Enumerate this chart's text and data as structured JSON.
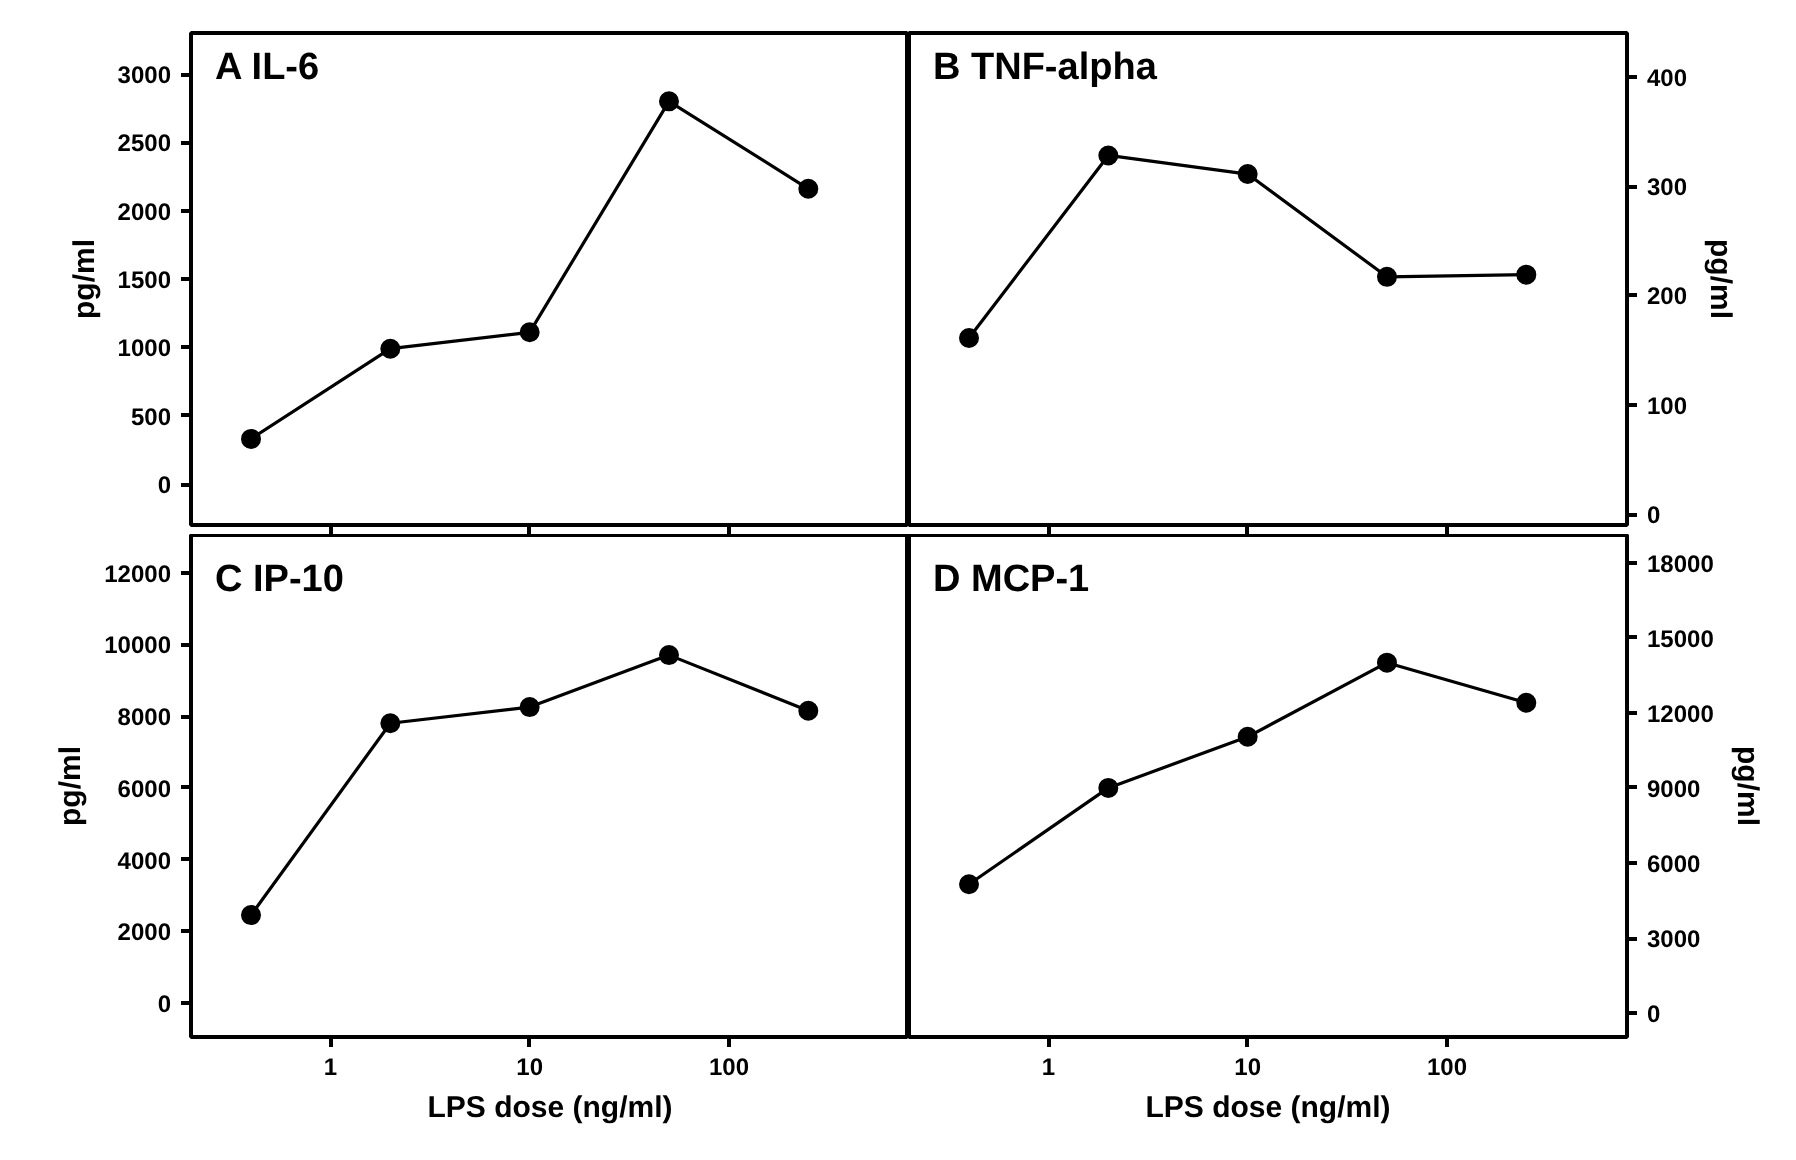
{
  "chart_data": [
    {
      "type": "line",
      "title": "A   IL-6",
      "ylabel": "pg/ml",
      "x": [
        0.4,
        2,
        10,
        50,
        250
      ],
      "log": "x",
      "marker": "circle",
      "line_style": "solid",
      "grid": false,
      "tick_labels": "y",
      "xlim": [
        0.2,
        800
      ],
      "xticks": [
        {
          "value": 1,
          "label": null
        },
        {
          "value": 10,
          "label": null
        },
        {
          "value": 100,
          "label": null
        }
      ],
      "ylim": [
        -300,
        3300
      ],
      "yticks": [
        0,
        500,
        1000,
        1500,
        2000,
        2500,
        3000
      ],
      "series": [
        {
          "color": "#000000",
          "values": [
            330,
            990,
            1110,
            2800,
            2160
          ]
        }
      ]
    },
    {
      "type": "line",
      "title": "B   TNF-alpha",
      "y2label": "pg/ml",
      "x": [
        0.4,
        2,
        10,
        50,
        250
      ],
      "log": "x",
      "marker": "circle",
      "line_style": "solid",
      "grid": false,
      "tick_labels": "y",
      "xlim": [
        0.2,
        800
      ],
      "xticks": [
        {
          "value": 1,
          "label": null
        },
        {
          "value": 10,
          "label": null
        },
        {
          "value": 100,
          "label": null
        }
      ],
      "y2lim": [
        -10,
        440
      ],
      "y2ticks": [
        0,
        100,
        200,
        300,
        400
      ],
      "series": [
        {
          "color": "#000000",
          "axis": "y2",
          "values": [
            161,
            328,
            311,
            217,
            219
          ]
        }
      ]
    },
    {
      "type": "line",
      "title": "C   IP-10",
      "xlabel": "LPS dose (ng/ml)",
      "ylabel": "pg/ml",
      "x": [
        0.4,
        2,
        10,
        50,
        250
      ],
      "log": "x",
      "marker": "circle",
      "line_style": "solid",
      "grid": false,
      "xlim": [
        0.2,
        800
      ],
      "xticks": [
        1,
        10,
        100
      ],
      "ylim": [
        -950,
        13050
      ],
      "yticks": [
        0,
        2000,
        4000,
        6000,
        8000,
        10000,
        12000
      ],
      "series": [
        {
          "color": "#000000",
          "values": [
            2450,
            7800,
            8250,
            9700,
            8150
          ]
        }
      ]
    },
    {
      "type": "line",
      "title": "D   MCP-1",
      "xlabel": "LPS dose (ng/ml)",
      "y2label": "pg/ml",
      "x": [
        0.4,
        2,
        10,
        50,
        250
      ],
      "log": "x",
      "marker": "circle",
      "line_style": "solid",
      "grid": false,
      "xlim": [
        0.2,
        800
      ],
      "xticks": [
        1,
        10,
        100
      ],
      "y2lim": [
        -950,
        19100
      ],
      "y2ticks": [
        0,
        3000,
        6000,
        9000,
        12000,
        15000,
        18000
      ],
      "series": [
        {
          "color": "#000000",
          "axis": "y2",
          "values": [
            5150,
            9000,
            11040,
            14000,
            12400
          ]
        }
      ]
    }
  ]
}
